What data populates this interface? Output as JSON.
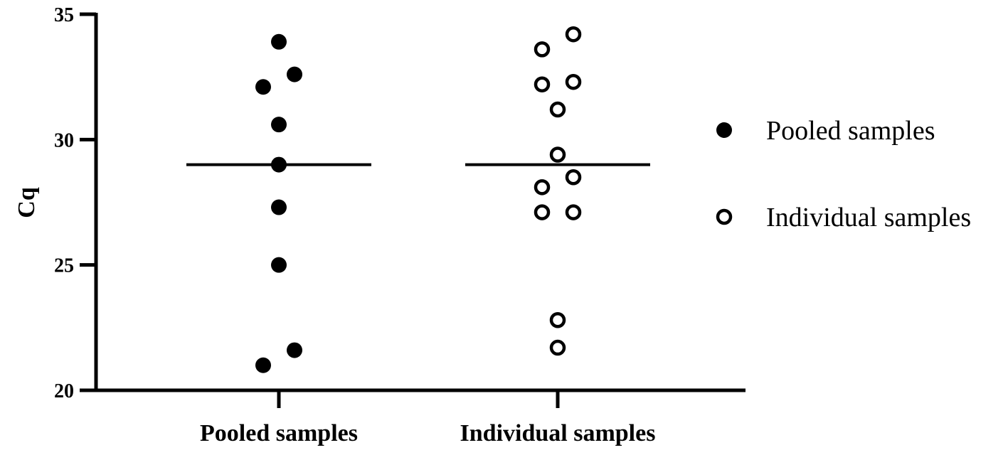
{
  "chart_data": {
    "type": "scatter",
    "title": "",
    "xlabel": "",
    "ylabel": "Cq",
    "ylim": [
      20,
      35
    ],
    "yticks": [
      20,
      25,
      30,
      35
    ],
    "categories": [
      "Pooled samples",
      "Individual samples"
    ],
    "grid": false,
    "legend_position": "right",
    "series": [
      {
        "name": "Pooled samples",
        "category": "Pooled samples",
        "marker": "filled-circle",
        "values": [
          33.9,
          32.6,
          32.1,
          30.6,
          29.0,
          27.3,
          25.0,
          21.6,
          21.0
        ],
        "offsets": [
          0,
          1,
          -1,
          0,
          0,
          0,
          0,
          1,
          -1
        ],
        "median": 29.0
      },
      {
        "name": "Individual samples",
        "category": "Individual samples",
        "marker": "open-circle",
        "values": [
          34.2,
          33.6,
          32.3,
          32.2,
          31.2,
          29.4,
          28.5,
          28.1,
          27.1,
          27.1,
          22.8,
          21.7
        ],
        "offsets": [
          1,
          -1,
          1,
          -1,
          0,
          0,
          1,
          -1,
          -1,
          1,
          0,
          0
        ],
        "median": 29.0
      }
    ]
  }
}
